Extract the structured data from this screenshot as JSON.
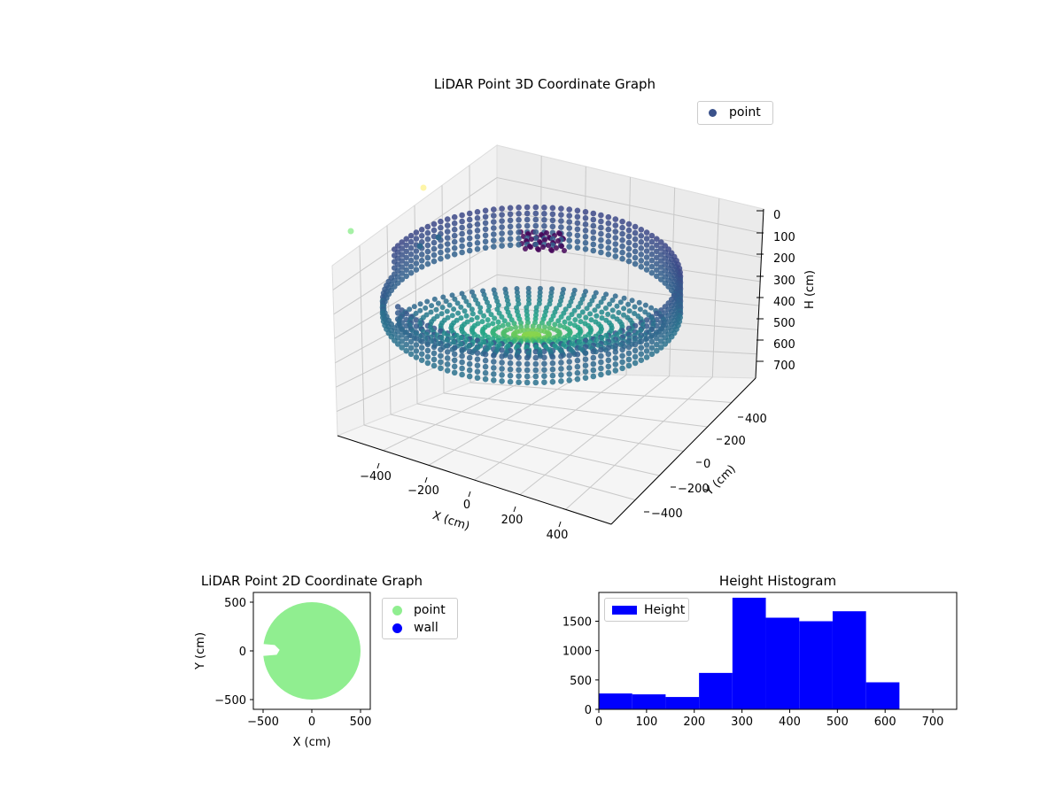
{
  "chart_data": [
    {
      "type": "scatter",
      "projection": "3d",
      "title": "LiDAR Point 3D Coordinate Graph",
      "xlabel": "X (cm)",
      "ylabel": "Y (cm)",
      "zlabel": "H (cm)",
      "xlim": [
        -550,
        550
      ],
      "ylim": [
        -550,
        550
      ],
      "zlim": [
        750,
        0
      ],
      "xticks": [
        "−400",
        "−200",
        "0",
        "200",
        "400"
      ],
      "yticks": [
        "−400",
        "−200",
        "0",
        "200",
        "400"
      ],
      "zticks": [
        "0",
        "100",
        "200",
        "300",
        "400",
        "500",
        "600",
        "700"
      ],
      "grid": true,
      "colormap": "viridis",
      "series": [
        {
          "name": "point",
          "color": "#3b528b",
          "description_shape": "circular bowl, radius ~500 cm, floor near H 700 cm rising to wall tops near H 100-300 cm"
        }
      ],
      "legend_position": "top-right"
    },
    {
      "type": "scatter",
      "title": "LiDAR Point 2D Coordinate Graph",
      "xlabel": "X (cm)",
      "ylabel": "Y (cm)",
      "xlim": [
        -600,
        600
      ],
      "ylim": [
        -600,
        600
      ],
      "xticks": [
        "−500",
        "0",
        "500"
      ],
      "yticks": [
        "500",
        "0",
        "−500"
      ],
      "series": [
        {
          "name": "point",
          "color": "#90ee90"
        },
        {
          "name": "wall",
          "color": "#0000ff"
        }
      ],
      "legend_position": "outside-right"
    },
    {
      "type": "bar",
      "title": "Height Histogram",
      "xlabel": "",
      "ylabel": "",
      "bin_edges": [
        0,
        70,
        140,
        210,
        280,
        350,
        420,
        490,
        560,
        630
      ],
      "values": [
        270,
        255,
        210,
        620,
        1900,
        1560,
        1500,
        1670,
        460
      ],
      "xlim": [
        0,
        750
      ],
      "ylim": [
        0,
        1990
      ],
      "xticks": [
        "0",
        "100",
        "200",
        "300",
        "400",
        "500",
        "600",
        "700"
      ],
      "yticks": [
        "0",
        "500",
        "1000",
        "1500"
      ],
      "series": [
        {
          "name": "Height",
          "color": "#0000ff"
        }
      ],
      "legend_position": "top-left"
    }
  ]
}
